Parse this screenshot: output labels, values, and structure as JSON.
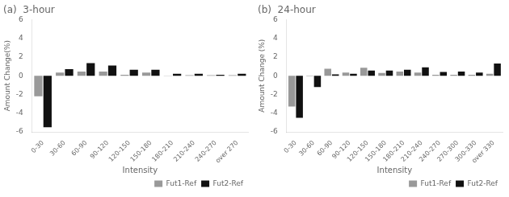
{
  "chart_data": [
    {
      "type": "bar",
      "title": "(a)  3-hour",
      "categories": [
        "0-30",
        "30-60",
        "60-90",
        "90-120",
        "120-150",
        "150-180",
        "180-210",
        "210-240",
        "240-270",
        "over 270"
      ],
      "series": [
        {
          "name": "Fut1-Ref",
          "color": "#999999",
          "values": [
            -2.2,
            0.35,
            0.45,
            0.45,
            0.1,
            0.35,
            0.02,
            0.05,
            0.05,
            0.05
          ]
        },
        {
          "name": "Fut2-Ref",
          "color": "#111111",
          "values": [
            -5.5,
            0.7,
            1.35,
            1.1,
            0.65,
            0.65,
            0.2,
            0.2,
            0.1,
            0.2
          ]
        }
      ],
      "x_label": "Intensity",
      "y_label": "Amount Change(%)",
      "ylim": [
        -6,
        6
      ],
      "yticks": [
        -6,
        -4,
        -2,
        0,
        2,
        4,
        6
      ],
      "grid": false,
      "legend": "lower right"
    },
    {
      "type": "bar",
      "title": "(b)  24-hour",
      "categories": [
        "0-30",
        "30-60",
        "60-90",
        "90-120",
        "120-150",
        "150-180",
        "180-210",
        "210-240",
        "240-270",
        "270-300",
        "300-330",
        "over 330"
      ],
      "series": [
        {
          "name": "Fut1-Ref",
          "color": "#999999",
          "values": [
            -3.3,
            -0.05,
            0.75,
            0.35,
            0.85,
            0.3,
            0.45,
            0.35,
            0.1,
            0.1,
            0.1,
            0.2
          ]
        },
        {
          "name": "Fut2-Ref",
          "color": "#111111",
          "values": [
            -4.5,
            -1.2,
            0.15,
            0.2,
            0.55,
            0.55,
            0.65,
            0.9,
            0.4,
            0.45,
            0.35,
            1.3
          ]
        }
      ],
      "x_label": "Intensity",
      "y_label": "Amount Change (%)",
      "ylim": [
        -6,
        6
      ],
      "yticks": [
        -6,
        -4,
        -2,
        0,
        2,
        4,
        6
      ],
      "grid": false,
      "legend": "lower right"
    }
  ]
}
